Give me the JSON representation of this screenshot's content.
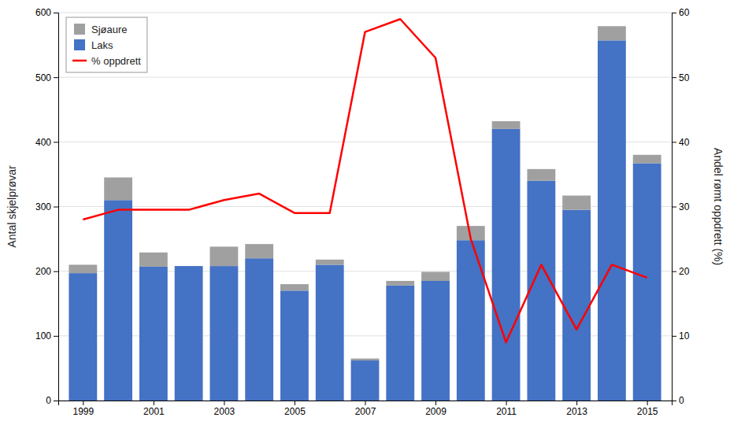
{
  "chart_data": {
    "type": "bar",
    "stacked": true,
    "ylabel": "Antal skjelprøvar",
    "y2label": "Andel rømt oppdrett (%)",
    "x": [
      1999,
      2000,
      2001,
      2002,
      2003,
      2004,
      2005,
      2006,
      2007,
      2008,
      2009,
      2010,
      2011,
      2012,
      2013,
      2014,
      2015
    ],
    "series": [
      {
        "name": "Laks",
        "type": "bar",
        "color": "#4472C4",
        "values": [
          197,
          310,
          207,
          208,
          208,
          220,
          170,
          210,
          62,
          178,
          185,
          248,
          420,
          340,
          295,
          557,
          367
        ]
      },
      {
        "name": "Sjøaure",
        "type": "bar",
        "color": "#A0A0A0",
        "values": [
          13,
          35,
          22,
          0,
          30,
          22,
          10,
          8,
          3,
          7,
          14,
          22,
          12,
          18,
          22,
          22,
          13
        ]
      },
      {
        "name": "% oppdrett",
        "type": "line",
        "axis": "y2",
        "color": "#FF0000",
        "values": [
          28,
          29.5,
          29.5,
          29.5,
          31,
          32,
          29,
          29,
          57,
          59,
          53,
          25,
          9,
          21,
          11,
          21,
          19
        ]
      }
    ],
    "xlim": [
      1998.3,
      2015.7
    ],
    "xticks": [
      1999,
      2001,
      2003,
      2005,
      2007,
      2009,
      2011,
      2013,
      2015
    ],
    "ylim": [
      0,
      600
    ],
    "yticks": [
      0,
      100,
      200,
      300,
      400,
      500,
      600
    ],
    "y2lim": [
      0,
      60
    ],
    "y2ticks": [
      0,
      10,
      20,
      30,
      40,
      50,
      60
    ],
    "grid": true,
    "legend": "upper left"
  }
}
